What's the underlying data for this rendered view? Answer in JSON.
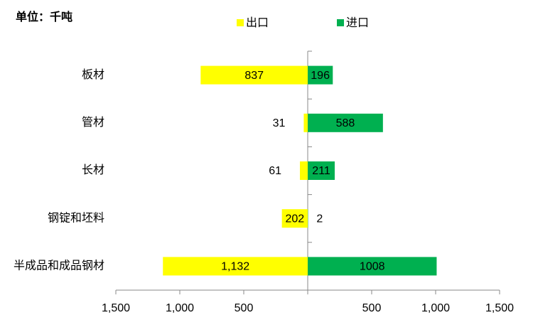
{
  "chart_data": {
    "type": "bar",
    "orientation": "horizontal",
    "title": "单位：千吨",
    "categories": [
      "板材",
      "管材",
      "长材",
      "钢锭和坯料",
      "半成品和成品钢材"
    ],
    "series": [
      {
        "name": "出口",
        "color": "#ffff00",
        "values": [
          -837,
          -31,
          -61,
          -202,
          -1132
        ],
        "value_labels": [
          "837",
          "31",
          "61",
          "202",
          "1,132"
        ]
      },
      {
        "name": "进口",
        "color": "#00b050",
        "values": [
          196,
          588,
          211,
          2,
          1008
        ]
      }
    ],
    "xlim": [
      -1500,
      1500
    ],
    "xticks": [
      {
        "value": -1500,
        "label": "1,500"
      },
      {
        "value": -1000,
        "label": "1,000"
      },
      {
        "value": -500,
        "label": "500"
      },
      500,
      {
        "value": 1000,
        "label": "1,000"
      },
      {
        "value": 1500,
        "label": "1,500"
      }
    ],
    "legend": "top"
  }
}
